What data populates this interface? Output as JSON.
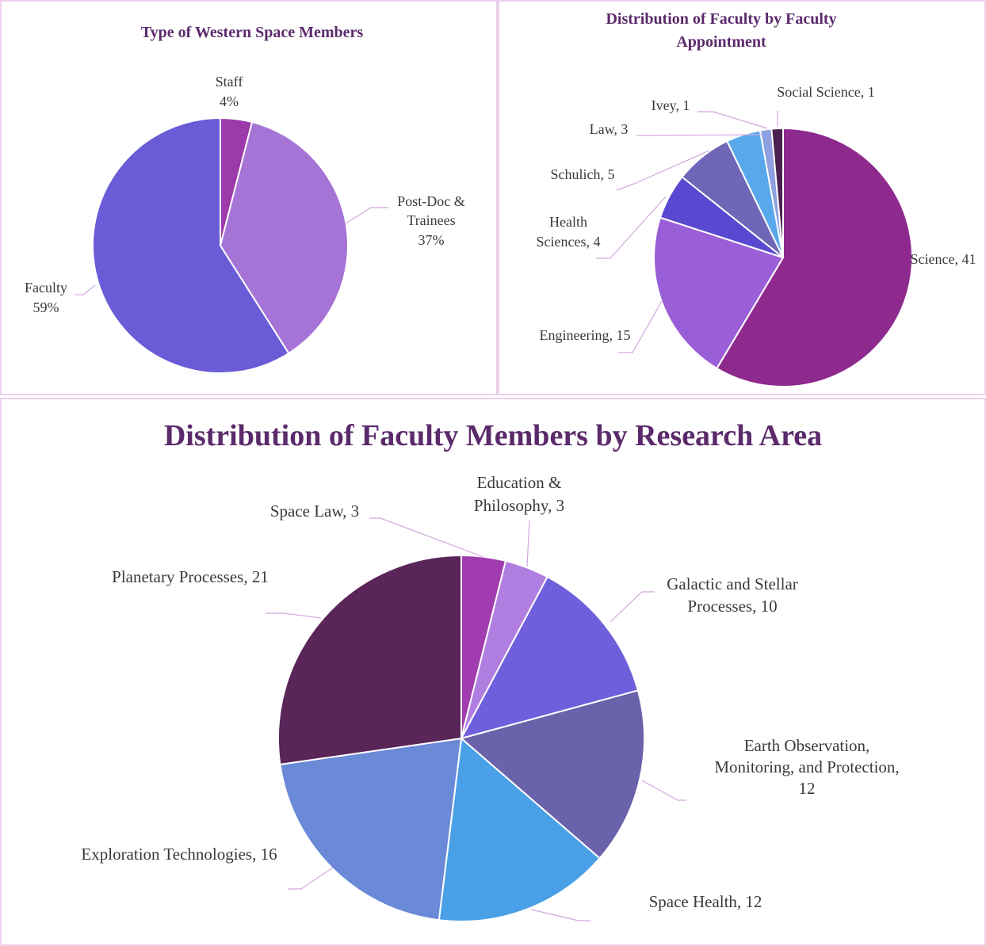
{
  "chart_data": [
    {
      "type": "pie",
      "title": "Type of Western Space Members",
      "categories": [
        "Staff",
        "Post-Doc & Trainees",
        "Faculty"
      ],
      "values": [
        4,
        37,
        59
      ],
      "value_labels": [
        "4%",
        "37%",
        "59%"
      ],
      "colors": [
        "#9b3aa8",
        "#a673d6",
        "#6a5bd6"
      ]
    },
    {
      "type": "pie",
      "title": "Distribution of Faculty by Faculty Appointment",
      "categories": [
        "Science",
        "Engineering",
        "Health Sciences",
        "Schulich",
        "Law",
        "Ivey",
        "Social Science"
      ],
      "values": [
        41,
        15,
        4,
        5,
        3,
        1,
        1
      ],
      "value_labels": [
        "Science, 41",
        "Engineering, 15",
        "Health Sciences, 4",
        "Schulich, 5",
        "Law, 3",
        "Ivey, 1",
        "Social Science, 1"
      ],
      "colors": [
        "#8e2a8e",
        "#9a5fd6",
        "#5a48d0",
        "#6f66b8",
        "#5aa8ec",
        "#8ea0e0",
        "#4a2050"
      ]
    },
    {
      "type": "pie",
      "title": "Distribution of Faculty Members by Research Area",
      "categories": [
        "Space Law",
        "Education & Philosophy",
        "Galactic and Stellar Processes",
        "Earth Observation, Monitoring, and Protection",
        "Space Health",
        "Exploration Technologies",
        "Planetary Processes"
      ],
      "values": [
        3,
        3,
        10,
        12,
        12,
        16,
        21
      ],
      "value_labels": [
        "Space Law, 3",
        "Education & Philosophy, 3",
        "Galactic and Stellar Processes, 10",
        "Earth Observation, Monitoring, and Protection, 12",
        "Space Health, 12",
        "Exploration Technologies, 16",
        "Planetary Processes, 21"
      ],
      "colors": [
        "#a13cb0",
        "#b07ee0",
        "#6f5fdc",
        "#6a62ab",
        "#4aa0e6",
        "#6a8ad8",
        "#5a2558"
      ]
    }
  ]
}
